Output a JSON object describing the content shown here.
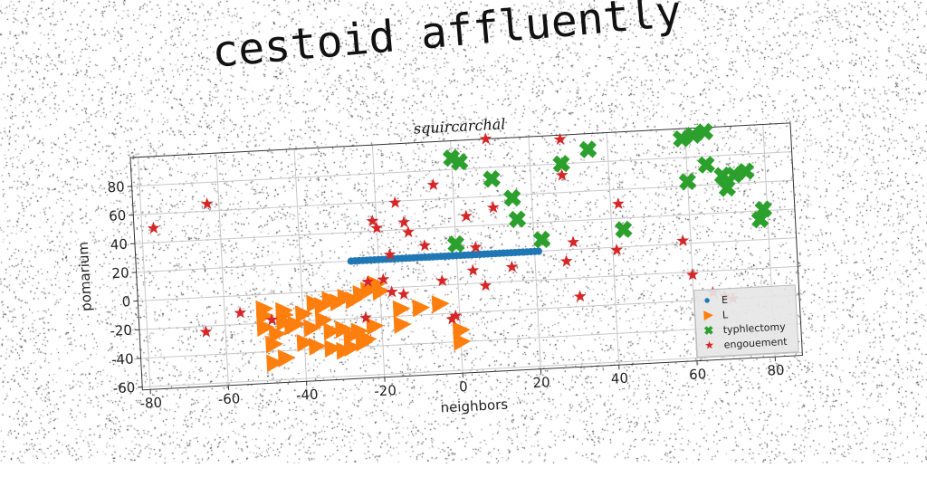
{
  "page": {
    "title": "cestoid affluently"
  },
  "chart_data": {
    "type": "scatter",
    "title": "squircarchal",
    "xlabel": "neighbors",
    "ylabel": "pomarium",
    "xlim": [
      -82,
      87
    ],
    "ylim": [
      -62,
      100
    ],
    "xticks": [
      -80,
      -60,
      -40,
      -20,
      0,
      20,
      40,
      60,
      80
    ],
    "yticks": [
      -60,
      -40,
      -20,
      0,
      20,
      40,
      60,
      80
    ],
    "grid": true,
    "legend_position": "lower-right",
    "series": [
      {
        "name": "E",
        "marker": "circle",
        "color": "#1f77b4",
        "points": [
          [
            -27,
            20
          ],
          [
            -26,
            20
          ],
          [
            -25,
            20
          ],
          [
            -24,
            20
          ],
          [
            -23,
            20
          ],
          [
            -22,
            20
          ],
          [
            -21,
            20
          ],
          [
            -20,
            20
          ],
          [
            -19,
            20
          ],
          [
            -18,
            20
          ],
          [
            -17,
            20
          ],
          [
            -16,
            20
          ],
          [
            -15,
            20
          ],
          [
            -14,
            20
          ],
          [
            -13,
            20
          ],
          [
            -12,
            20
          ],
          [
            -11,
            20
          ],
          [
            -10,
            20
          ],
          [
            -9,
            20
          ],
          [
            -8,
            20
          ],
          [
            -7,
            20
          ],
          [
            -6,
            20
          ],
          [
            -5,
            20
          ],
          [
            -4,
            20
          ],
          [
            -3,
            20
          ],
          [
            -2,
            20
          ],
          [
            -1,
            20
          ],
          [
            0,
            20
          ],
          [
            1,
            20
          ],
          [
            2,
            20
          ],
          [
            3,
            20
          ],
          [
            4,
            20
          ],
          [
            5,
            20
          ],
          [
            6,
            20
          ],
          [
            7,
            20
          ],
          [
            8,
            20
          ],
          [
            9,
            20
          ],
          [
            10,
            20
          ],
          [
            11,
            20
          ],
          [
            12,
            20
          ],
          [
            13,
            20
          ],
          [
            14,
            20
          ],
          [
            15,
            20
          ],
          [
            16,
            20
          ],
          [
            17,
            20
          ],
          [
            18,
            20
          ],
          [
            19,
            20
          ],
          [
            20,
            20
          ],
          [
            21,
            20
          ]
        ]
      },
      {
        "name": "L",
        "marker": "triangle-right",
        "color": "#ff7f0e",
        "points": [
          [
            -50,
            -10
          ],
          [
            -45,
            -12
          ],
          [
            -40,
            -15
          ],
          [
            -37,
            -8
          ],
          [
            -35,
            -10
          ],
          [
            -33,
            -6
          ],
          [
            -31,
            -8
          ],
          [
            -29,
            -5
          ],
          [
            -27,
            -7
          ],
          [
            -25,
            -3
          ],
          [
            -23,
            -1
          ],
          [
            -21,
            3
          ],
          [
            -20,
            -2
          ],
          [
            -45,
            -20
          ],
          [
            -42,
            -22
          ],
          [
            -38,
            -25
          ],
          [
            -35,
            -20
          ],
          [
            -33,
            -28
          ],
          [
            -30,
            -27
          ],
          [
            -28,
            -32
          ],
          [
            -26,
            -29
          ],
          [
            -24,
            -35
          ],
          [
            -22,
            -26
          ],
          [
            -50,
            -23
          ],
          [
            -47,
            -28
          ],
          [
            -40,
            -35
          ],
          [
            -37,
            -38
          ],
          [
            -33,
            -40
          ],
          [
            -30,
            -42
          ],
          [
            -28,
            -40
          ],
          [
            -25,
            -37
          ],
          [
            -48,
            -48
          ],
          [
            -45,
            -45
          ],
          [
            -15,
            -15
          ],
          [
            -15,
            -26
          ],
          [
            -10,
            -15
          ],
          [
            -5,
            -13
          ],
          [
            0,
            -32
          ],
          [
            0,
            -40
          ],
          [
            -50,
            -15
          ],
          [
            -48,
            -35
          ],
          [
            -45,
            -15
          ],
          [
            -43,
            -23
          ]
        ]
      },
      {
        "name": "typhlectomy",
        "marker": "x-thick",
        "color": "#2ca02c",
        "points": [
          [
            0,
            88
          ],
          [
            2,
            85
          ],
          [
            10,
            72
          ],
          [
            15,
            58
          ],
          [
            16,
            43
          ],
          [
            28,
            80
          ],
          [
            35,
            89
          ],
          [
            43,
            32
          ],
          [
            59,
            93
          ],
          [
            62,
            95
          ],
          [
            65,
            97
          ],
          [
            60,
            63
          ],
          [
            65,
            74
          ],
          [
            69,
            66
          ],
          [
            70,
            57
          ],
          [
            72,
            66
          ],
          [
            75,
            68
          ],
          [
            78,
            34
          ],
          [
            79,
            41
          ],
          [
            22,
            28
          ],
          [
            0,
            28
          ]
        ]
      },
      {
        "name": "engouement",
        "marker": "star",
        "color": "#d62728",
        "points": [
          [
            -77,
            50
          ],
          [
            -63,
            65
          ],
          [
            -65,
            -24
          ],
          [
            -56,
            -12
          ],
          [
            -48,
            -18
          ],
          [
            -21,
            47
          ],
          [
            -20,
            42
          ],
          [
            -17,
            23
          ],
          [
            -19,
            6
          ],
          [
            -17,
            -3
          ],
          [
            -15,
            59
          ],
          [
            -13,
            45
          ],
          [
            -12,
            38
          ],
          [
            -14,
            -5
          ],
          [
            -8,
            28
          ],
          [
            -5,
            70
          ],
          [
            -4,
            3
          ],
          [
            -2,
            -24
          ],
          [
            -1,
            -22
          ],
          [
            3,
            47
          ],
          [
            4,
            9
          ],
          [
            7,
            -2
          ],
          [
            9,
            100
          ],
          [
            10,
            52
          ],
          [
            14,
            10
          ],
          [
            28,
            97
          ],
          [
            28,
            72
          ],
          [
            28,
            12
          ],
          [
            30,
            25
          ],
          [
            31,
            -13
          ],
          [
            41,
            18
          ],
          [
            42,
            50
          ],
          [
            58,
            22
          ],
          [
            60,
            -2
          ],
          [
            65,
            -15
          ],
          [
            68,
            -18
          ],
          [
            70,
            -20
          ],
          [
            5,
            25
          ],
          [
            -23,
            5
          ],
          [
            -24,
            -20
          ]
        ]
      }
    ]
  }
}
